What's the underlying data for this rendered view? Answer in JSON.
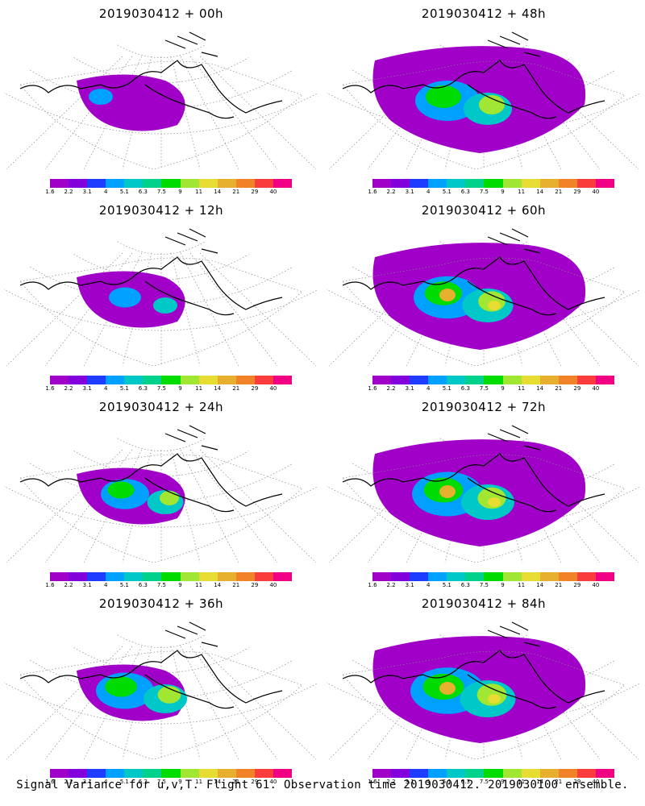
{
  "panels": [
    {
      "title": "2019030412 + 00h",
      "lead": "00h",
      "intensity": 0.35
    },
    {
      "title": "2019030412 + 48h",
      "lead": "48h",
      "intensity": 1.0
    },
    {
      "title": "2019030412 + 12h",
      "lead": "12h",
      "intensity": 0.5
    },
    {
      "title": "2019030412 + 60h",
      "lead": "60h",
      "intensity": 1.05
    },
    {
      "title": "2019030412 + 24h",
      "lead": "24h",
      "intensity": 0.75
    },
    {
      "title": "2019030412 + 72h",
      "lead": "72h",
      "intensity": 1.1
    },
    {
      "title": "2019030412 + 36h",
      "lead": "36h",
      "intensity": 0.9
    },
    {
      "title": "2019030412 + 84h",
      "lead": "84h",
      "intensity": 1.15
    }
  ],
  "colorbar": {
    "labels": [
      "1.6",
      "2.2",
      "3.1",
      "4",
      "5.1",
      "6.3",
      "7.5",
      "9",
      "11",
      "14",
      "21",
      "29",
      "40"
    ],
    "colors": [
      "#a000c8",
      "#8200dc",
      "#1e3cff",
      "#00a0ff",
      "#00c8c8",
      "#00d28c",
      "#00dc00",
      "#a0e632",
      "#e6dc32",
      "#e6af2d",
      "#f08228",
      "#fa3c3c",
      "#f00082"
    ]
  },
  "footer": "Signal Variance for u,v,T. Flight 61. Observation time 2019030412. 2019030100 ensemble."
}
